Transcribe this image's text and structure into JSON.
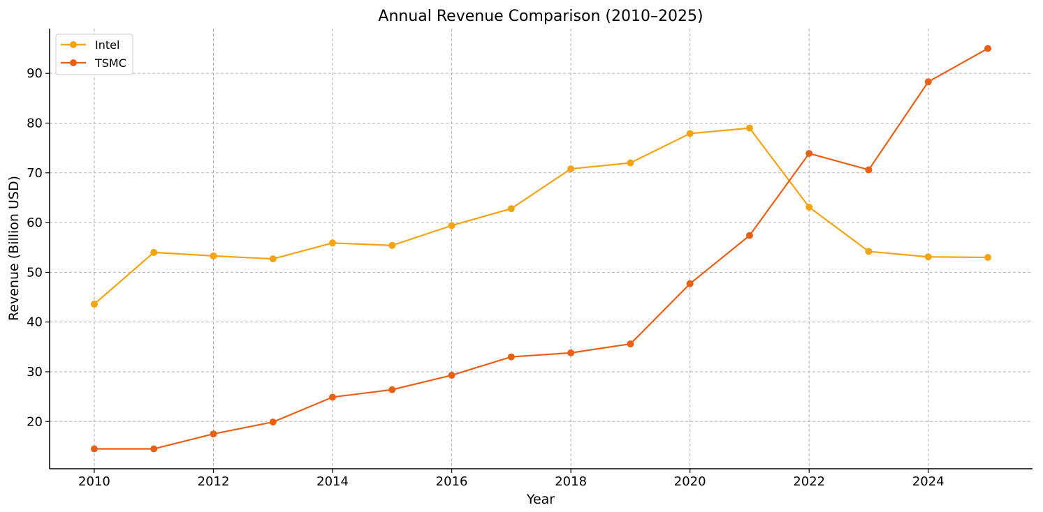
{
  "chart_data": {
    "type": "line",
    "title": "Annual Revenue Comparison (2010–2025)",
    "xlabel": "Year",
    "ylabel": "Revenue (Billion USD)",
    "x": [
      2010,
      2011,
      2012,
      2013,
      2014,
      2015,
      2016,
      2017,
      2018,
      2019,
      2020,
      2021,
      2022,
      2023,
      2024,
      2025
    ],
    "xticks": [
      2010,
      2012,
      2014,
      2016,
      2018,
      2020,
      2022,
      2024
    ],
    "yticks": [
      20,
      30,
      40,
      50,
      60,
      70,
      80,
      90
    ],
    "xlim": [
      2009.25,
      2025.75
    ],
    "ylim": [
      10.5,
      99
    ],
    "grid": true,
    "legend_position": "top-left",
    "series": [
      {
        "name": "Intel",
        "color": "#F5A30F",
        "values": [
          43.6,
          54.0,
          53.3,
          52.7,
          55.9,
          55.4,
          59.4,
          62.8,
          70.8,
          72.0,
          77.9,
          79.0,
          63.1,
          54.2,
          53.1,
          53.0
        ]
      },
      {
        "name": "TSMC",
        "color": "#EA5F16",
        "values": [
          14.5,
          14.5,
          17.5,
          19.9,
          24.9,
          26.4,
          29.3,
          33.0,
          33.8,
          35.6,
          47.7,
          57.4,
          73.9,
          70.6,
          88.3,
          95.0
        ]
      }
    ]
  }
}
